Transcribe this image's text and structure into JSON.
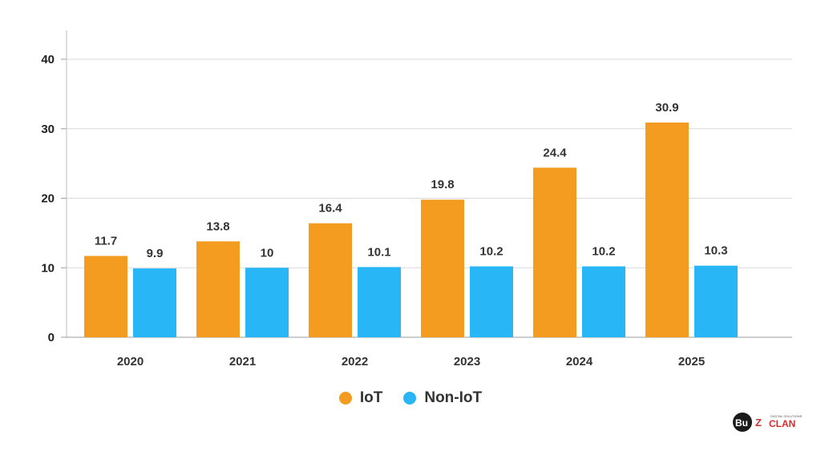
{
  "chart_data": {
    "type": "bar",
    "categories": [
      "2020",
      "2021",
      "2022",
      "2023",
      "2024",
      "2025"
    ],
    "series": [
      {
        "name": "IoT",
        "values": [
          11.7,
          13.8,
          16.4,
          19.8,
          24.4,
          30.9
        ],
        "color": "#F39C1F"
      },
      {
        "name": "Non-IoT",
        "values": [
          9.9,
          10,
          10.1,
          10.2,
          10.2,
          10.3
        ],
        "color": "#29B6F6"
      }
    ],
    "data_labels": [
      [
        "11.7",
        "13.8",
        "16.4",
        "19.8",
        "24.4",
        "30.9"
      ],
      [
        "9.9",
        "10",
        "10.1",
        "10.2",
        "10.2",
        "10.3"
      ]
    ],
    "yticks": [
      "0",
      "10",
      "20",
      "30",
      "40"
    ],
    "ylim": [
      0,
      40
    ],
    "grid": true,
    "legend_position": "bottom-center"
  },
  "logo": {
    "text_left": "Bu",
    "text_z": "Z",
    "text_right": "CLAN",
    "tagline": "DIGITAL SOLUTIONS"
  }
}
